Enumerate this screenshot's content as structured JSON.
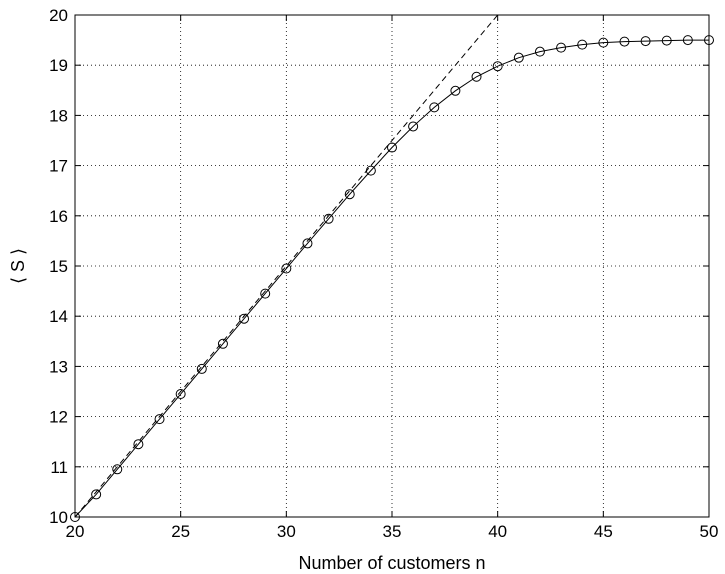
{
  "chart_data": {
    "type": "line",
    "xlabel": "Number of customers n",
    "ylabel": "⟨ S ⟩",
    "xlim": [
      20,
      50
    ],
    "ylim": [
      10,
      20
    ],
    "xticks": [
      20,
      25,
      30,
      35,
      40,
      45,
      50
    ],
    "yticks": [
      10,
      11,
      12,
      13,
      14,
      15,
      16,
      17,
      18,
      19,
      20
    ],
    "xtick_labels": [
      "20",
      "25",
      "30",
      "35",
      "40",
      "45",
      "50"
    ],
    "ytick_labels": [
      "10",
      "11",
      "12",
      "13",
      "14",
      "15",
      "16",
      "17",
      "18",
      "19",
      "20"
    ],
    "grid": true,
    "series": [
      {
        "style": "solid-line-circle-markers",
        "x": [
          20,
          21,
          22,
          23,
          24,
          25,
          26,
          27,
          28,
          29,
          30,
          31,
          32,
          33,
          34,
          35,
          36,
          37,
          38,
          39,
          40,
          41,
          42,
          43,
          44,
          45,
          46,
          47,
          48,
          49,
          50
        ],
        "y": [
          10.0,
          10.45,
          10.95,
          11.45,
          11.95,
          12.45,
          12.95,
          13.45,
          13.95,
          14.45,
          14.95,
          15.45,
          15.94,
          16.43,
          16.9,
          17.36,
          17.78,
          18.16,
          18.49,
          18.77,
          18.98,
          19.15,
          19.27,
          19.35,
          19.41,
          19.45,
          19.47,
          19.48,
          19.49,
          19.5,
          19.5
        ]
      },
      {
        "style": "dashed-line",
        "x": [
          20,
          40
        ],
        "y": [
          10,
          20
        ]
      }
    ]
  }
}
